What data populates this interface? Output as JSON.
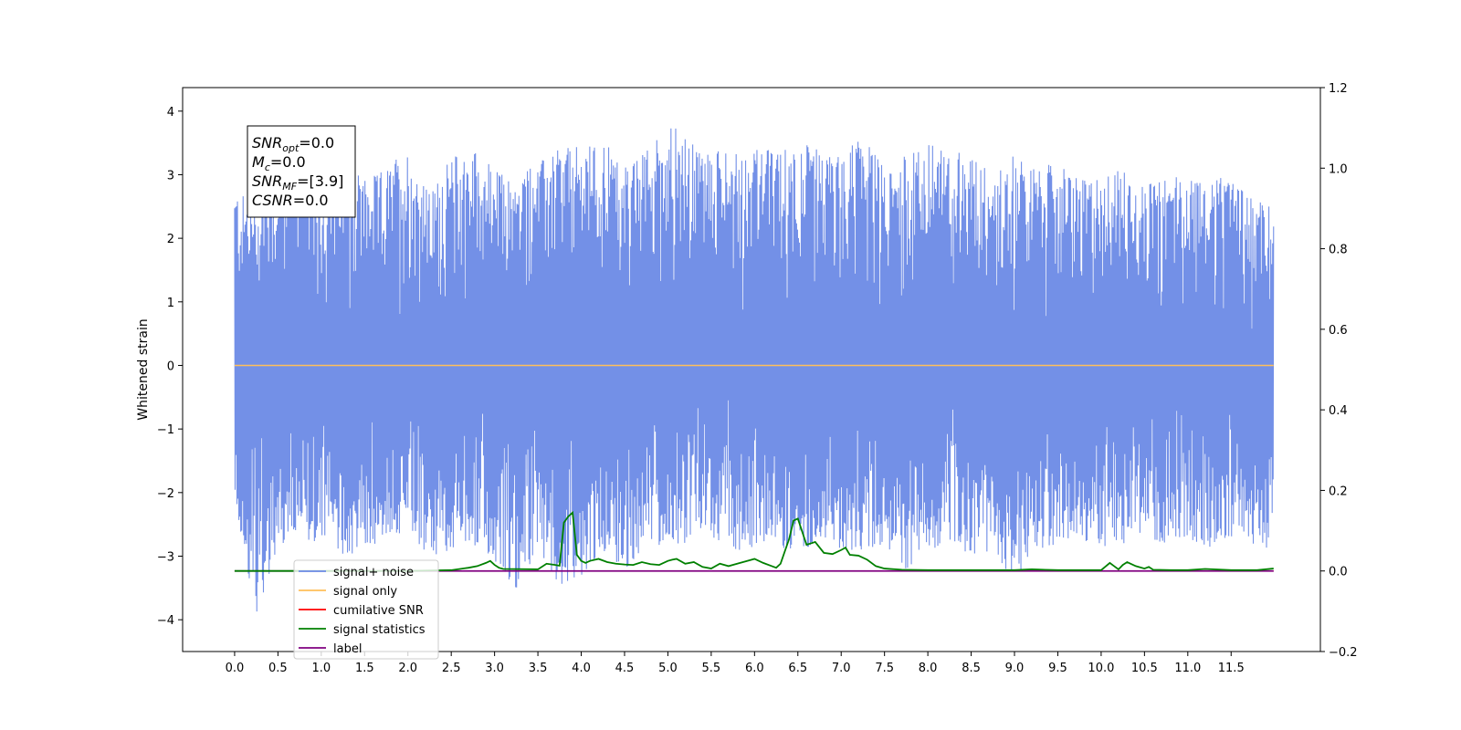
{
  "chart_data": {
    "type": "line",
    "ylabel": "Whitened strain",
    "ylabel_right": "",
    "xlim": [
      -0.6,
      12.53
    ],
    "ylim": [
      -4.5,
      4.37
    ],
    "ylim_right": [
      -0.2,
      1.2
    ],
    "x_ticks": [
      "0.0",
      "0.5",
      "1.0",
      "1.5",
      "2.0",
      "2.5",
      "3.0",
      "3.5",
      "4.0",
      "4.5",
      "5.0",
      "5.5",
      "6.0",
      "6.5",
      "7.0",
      "7.5",
      "8.0",
      "8.5",
      "9.0",
      "9.5",
      "10.0",
      "10.5",
      "11.0",
      "11.5"
    ],
    "y_ticks_left": [
      "4",
      "3",
      "2",
      "1",
      "0",
      "−1",
      "−2",
      "−3",
      "−4"
    ],
    "y_ticks_right": [
      "1.2",
      "1.0",
      "0.8",
      "0.6",
      "0.4",
      "0.2",
      "0.0",
      "−0.2"
    ],
    "grid": false,
    "legend_position": "lower-left",
    "colors": {
      "signal_noise": "#6b8ae6",
      "signal_only": "#ffbf5a",
      "cumulative_snr": "#ff0000",
      "signal_statistics": "#008000",
      "label": "#800080"
    },
    "series": [
      {
        "name": "signal+ noise",
        "axis": "left",
        "envelope_x": [
          0.0,
          0.25,
          0.5,
          0.75,
          1.0,
          1.25,
          1.5,
          1.75,
          2.0,
          2.25,
          2.5,
          2.75,
          3.0,
          3.25,
          3.5,
          3.75,
          4.0,
          4.25,
          4.5,
          4.75,
          5.0,
          5.25,
          5.5,
          5.75,
          6.0,
          6.25,
          6.5,
          6.75,
          7.0,
          7.25,
          7.5,
          7.75,
          8.0,
          8.25,
          8.5,
          8.75,
          9.0,
          9.25,
          9.5,
          9.75,
          10.0,
          10.25,
          10.5,
          10.75,
          11.0,
          11.25,
          11.5,
          11.75,
          11.99
        ],
        "envelope_max": [
          2.8,
          2.5,
          3.3,
          4.0,
          2.7,
          3.2,
          2.9,
          3.1,
          3.4,
          2.7,
          3.3,
          3.45,
          3.1,
          2.9,
          3.2,
          3.4,
          3.45,
          3.55,
          3.1,
          3.35,
          3.9,
          3.5,
          3.4,
          3.3,
          3.45,
          3.35,
          3.55,
          3.4,
          3.3,
          3.7,
          3.1,
          3.3,
          3.5,
          3.3,
          3.4,
          3.0,
          3.35,
          3.1,
          3.2,
          2.9,
          3.0,
          3.1,
          2.8,
          3.0,
          3.05,
          3.0,
          2.9,
          2.6,
          2.5
        ],
        "envelope_min": [
          -2.2,
          -3.9,
          -2.9,
          -2.7,
          -2.8,
          -3.0,
          -2.9,
          -2.7,
          -2.6,
          -3.0,
          -2.9,
          -2.8,
          -3.1,
          -3.5,
          -2.9,
          -3.45,
          -3.3,
          -2.9,
          -3.2,
          -2.9,
          -2.8,
          -2.8,
          -2.7,
          -2.9,
          -2.9,
          -2.8,
          -3.0,
          -2.7,
          -2.9,
          -2.9,
          -2.8,
          -3.2,
          -2.9,
          -2.8,
          -3.0,
          -2.9,
          -3.4,
          -2.9,
          -2.8,
          -2.7,
          -2.9,
          -2.8,
          -2.7,
          -2.8,
          -2.7,
          -2.9,
          -2.8,
          -2.8,
          -2.9
        ]
      },
      {
        "name": "signal only",
        "axis": "left",
        "x": [
          0.0,
          11.99
        ],
        "y": [
          0.0,
          0.0
        ]
      },
      {
        "name": "cumilative SNR",
        "axis": "right",
        "x": [
          0.0,
          11.99
        ],
        "y": [
          0.0,
          0.0
        ]
      },
      {
        "name": "signal statistics",
        "axis": "right",
        "x": [
          0.0,
          1.0,
          2.0,
          2.5,
          2.7,
          2.8,
          2.9,
          2.95,
          3.0,
          3.05,
          3.1,
          3.5,
          3.6,
          3.7,
          3.75,
          3.8,
          3.85,
          3.9,
          3.95,
          4.0,
          4.05,
          4.1,
          4.2,
          4.3,
          4.4,
          4.5,
          4.6,
          4.7,
          4.8,
          4.9,
          5.0,
          5.05,
          5.1,
          5.2,
          5.3,
          5.4,
          5.5,
          5.6,
          5.7,
          5.8,
          5.9,
          6.0,
          6.1,
          6.2,
          6.25,
          6.3,
          6.4,
          6.45,
          6.5,
          6.6,
          6.7,
          6.8,
          6.9,
          7.0,
          7.05,
          7.1,
          7.2,
          7.3,
          7.4,
          7.5,
          7.7,
          8.0,
          8.5,
          9.0,
          9.2,
          9.5,
          10.0,
          10.1,
          10.15,
          10.2,
          10.25,
          10.3,
          10.4,
          10.5,
          10.55,
          10.6,
          10.8,
          11.0,
          11.2,
          11.5,
          11.8,
          11.99
        ],
        "y": [
          0.0,
          0.0,
          0.0,
          0.002,
          0.008,
          0.012,
          0.02,
          0.025,
          0.015,
          0.008,
          0.005,
          0.004,
          0.018,
          0.015,
          0.013,
          0.12,
          0.135,
          0.145,
          0.04,
          0.025,
          0.02,
          0.025,
          0.03,
          0.022,
          0.018,
          0.016,
          0.015,
          0.022,
          0.017,
          0.015,
          0.025,
          0.028,
          0.03,
          0.018,
          0.022,
          0.01,
          0.006,
          0.018,
          0.012,
          0.018,
          0.024,
          0.03,
          0.02,
          0.012,
          0.008,
          0.018,
          0.08,
          0.125,
          0.13,
          0.065,
          0.072,
          0.045,
          0.042,
          0.052,
          0.058,
          0.04,
          0.038,
          0.028,
          0.012,
          0.006,
          0.003,
          0.002,
          0.002,
          0.002,
          0.004,
          0.002,
          0.002,
          0.02,
          0.012,
          0.004,
          0.015,
          0.022,
          0.012,
          0.006,
          0.01,
          0.003,
          0.002,
          0.002,
          0.005,
          0.002,
          0.002,
          0.006
        ]
      },
      {
        "name": "label",
        "axis": "right",
        "x": [
          0.0,
          11.99
        ],
        "y": [
          0.0,
          0.0
        ]
      }
    ],
    "annotation": {
      "lines": [
        {
          "base": "SNR",
          "sub": "opt",
          "rest": "=0.0"
        },
        {
          "base": "M",
          "sub": "c",
          "rest": "=0.0"
        },
        {
          "base": "SNR",
          "sub": "MF",
          "rest": "=[3.9]"
        },
        {
          "base": "CSNR",
          "sub": "",
          "rest": "=0.0"
        }
      ]
    }
  }
}
